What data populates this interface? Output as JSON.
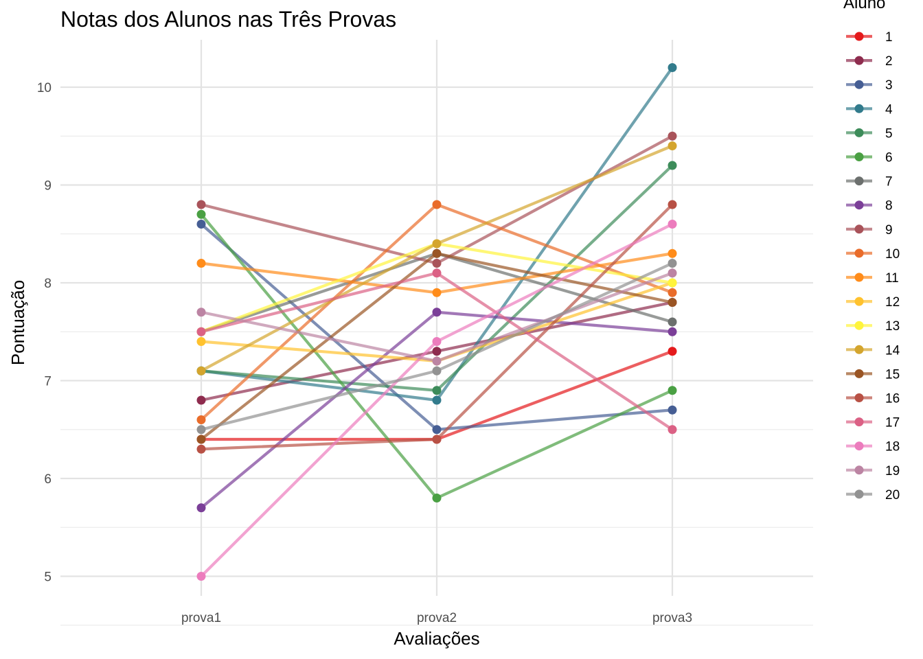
{
  "chart_data": {
    "type": "line",
    "title": "Notas dos Alunos nas Três Provas",
    "xlabel": "Avaliações",
    "ylabel": "Pontuação",
    "categories": [
      "prova1",
      "prova2",
      "prova3"
    ],
    "ylim": [
      4.78,
      10.48
    ],
    "yticks": [
      5,
      6,
      7,
      8,
      9,
      10
    ],
    "grid": true,
    "legend": {
      "title": "Aluno",
      "position": "right"
    },
    "series": [
      {
        "name": "1",
        "color": "#E41A1C",
        "values": [
          6.4,
          6.4,
          7.3
        ]
      },
      {
        "name": "2",
        "color": "#8E2C4E",
        "values": [
          6.8,
          7.3,
          7.8
        ]
      },
      {
        "name": "3",
        "color": "#465E94",
        "values": [
          8.6,
          6.5,
          6.7
        ]
      },
      {
        "name": "4",
        "color": "#327B8C",
        "values": [
          7.1,
          6.8,
          10.2
        ]
      },
      {
        "name": "5",
        "color": "#3D8C5A",
        "values": [
          7.1,
          6.9,
          9.2
        ]
      },
      {
        "name": "6",
        "color": "#4AA043",
        "values": [
          8.7,
          5.8,
          6.9
        ]
      },
      {
        "name": "7",
        "color": "#6C706E",
        "values": [
          7.5,
          8.3,
          7.6
        ]
      },
      {
        "name": "8",
        "color": "#7B3F98",
        "values": [
          5.7,
          7.7,
          7.5
        ]
      },
      {
        "name": "9",
        "color": "#A9535A",
        "values": [
          8.8,
          8.2,
          9.5
        ]
      },
      {
        "name": "10",
        "color": "#E96C2A",
        "values": [
          6.6,
          8.8,
          7.9
        ]
      },
      {
        "name": "11",
        "color": "#FF8C1A",
        "values": [
          8.2,
          7.9,
          8.3
        ]
      },
      {
        "name": "12",
        "color": "#FFC22E",
        "values": [
          7.4,
          7.2,
          8.0
        ]
      },
      {
        "name": "13",
        "color": "#FFF43C",
        "values": [
          7.5,
          8.4,
          8.0
        ]
      },
      {
        "name": "14",
        "color": "#D4A52E",
        "values": [
          7.1,
          8.4,
          9.4
        ]
      },
      {
        "name": "15",
        "color": "#9A5524",
        "values": [
          6.4,
          8.3,
          7.8
        ]
      },
      {
        "name": "16",
        "color": "#B85145",
        "values": [
          6.3,
          6.4,
          8.8
        ]
      },
      {
        "name": "17",
        "color": "#DB6185",
        "values": [
          7.5,
          8.1,
          6.5
        ]
      },
      {
        "name": "18",
        "color": "#EC7CBD",
        "values": [
          5.0,
          7.4,
          8.6
        ]
      },
      {
        "name": "19",
        "color": "#BC84A3",
        "values": [
          7.7,
          7.2,
          8.1
        ]
      },
      {
        "name": "20",
        "color": "#929292",
        "values": [
          6.5,
          7.1,
          8.2
        ]
      }
    ]
  }
}
